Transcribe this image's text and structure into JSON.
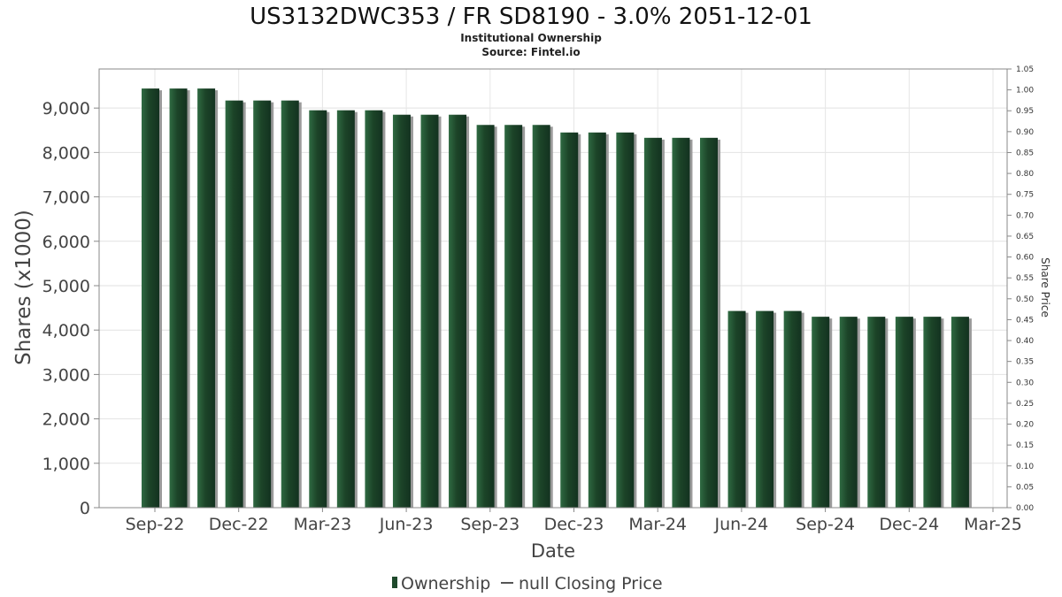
{
  "chart_data": {
    "type": "bar",
    "title": "US3132DWC353 / FR SD8190 - 3.0% 2051-12-01",
    "subtitle": "Institutional Ownership",
    "source": "Source: Fintel.io",
    "xlabel": "Date",
    "ylabel": "Shares (x1000)",
    "y2label": "Share Price",
    "ylim": [
      0,
      9880
    ],
    "y2lim": [
      0,
      1.05
    ],
    "grid": true,
    "legend_position": "bottom",
    "yticks": [
      "0",
      "1,000",
      "2,000",
      "3,000",
      "4,000",
      "5,000",
      "6,000",
      "7,000",
      "8,000",
      "9,000"
    ],
    "y2ticks": [
      "0.00",
      "0.05",
      "0.10",
      "0.15",
      "0.20",
      "0.25",
      "0.30",
      "0.35",
      "0.40",
      "0.45",
      "0.50",
      "0.55",
      "0.60",
      "0.65",
      "0.70",
      "0.75",
      "0.80",
      "0.85",
      "0.90",
      "0.95",
      "1.00",
      "1.05"
    ],
    "xticks": [
      "Sep-22",
      "Dec-22",
      "Mar-23",
      "Jun-23",
      "Sep-23",
      "Dec-23",
      "Mar-24",
      "Jun-24",
      "Sep-24",
      "Dec-24",
      "Mar-25"
    ],
    "series": [
      {
        "name": "Ownership",
        "color": "#1f4a2c",
        "values": [
          9440,
          9440,
          9440,
          9170,
          9170,
          9170,
          8950,
          8950,
          8950,
          8850,
          8850,
          8850,
          8620,
          8620,
          8620,
          8450,
          8450,
          8450,
          8330,
          8330,
          8330,
          4430,
          4430,
          4430,
          4300,
          4300,
          4300,
          4300,
          4300,
          4300
        ]
      },
      {
        "name": "null Closing Price",
        "color": "#555555",
        "values": []
      }
    ]
  },
  "legend": {
    "ownership_label": "Ownership",
    "price_label": "null Closing Price"
  }
}
